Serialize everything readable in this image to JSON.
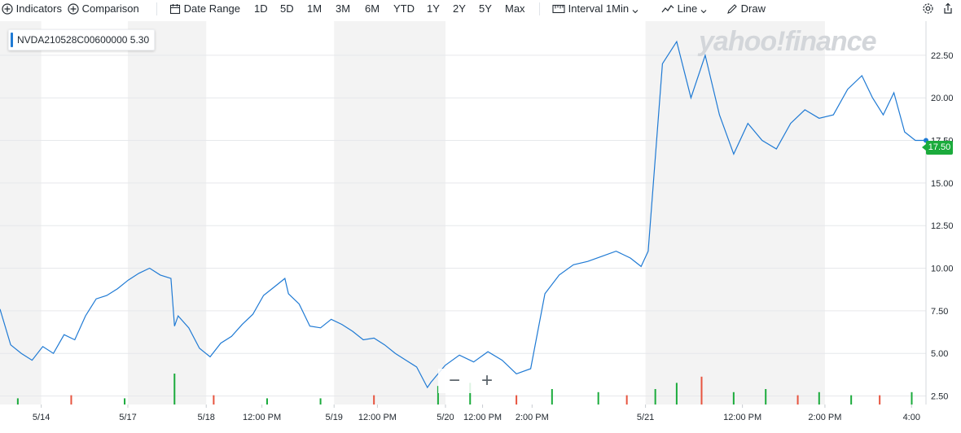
{
  "toolbar": {
    "indicators": "Indicators",
    "comparison": "Comparison",
    "date_range": "Date Range",
    "ranges": [
      "1D",
      "5D",
      "1M",
      "3M",
      "6M",
      "YTD",
      "1Y",
      "2Y",
      "5Y",
      "Max"
    ],
    "interval_label": "Interval",
    "interval_value": "1Min",
    "chart_type": "Line",
    "draw": "Draw"
  },
  "symbol": {
    "name": "NVDA210528C00600000",
    "value": "5.30"
  },
  "watermark": "yahoo!finance",
  "last_price": "17.50",
  "zoom": {
    "minus": "−",
    "plus": "+"
  },
  "colors": {
    "line": "#1f7ad4",
    "last_price_bg": "#1bab3c",
    "volume_up": "#1bab3c",
    "volume_down": "#e7543f"
  },
  "chart_data": {
    "type": "line",
    "y_ticks": [
      "2.50",
      "5.00",
      "7.50",
      "10.00",
      "12.50",
      "15.00",
      "17.50",
      "20.00",
      "22.50"
    ],
    "x_ticks": [
      "5/14",
      "5/17",
      "5/18",
      "12:00 PM",
      "5/19",
      "12:00 PM",
      "5/20",
      "12:00 PM",
      "2:00 PM",
      "5/21",
      "12:00 PM",
      "2:00 PM",
      "4:00"
    ],
    "ylim": [
      2.0,
      24.5
    ],
    "series": [
      {
        "x": [
          0,
          0.3,
          0.6,
          0.9,
          1.2,
          1.5,
          1.8,
          2.1,
          2.4,
          2.7,
          3.0,
          3.3,
          3.6,
          3.9,
          4.2,
          4.5,
          4.8,
          4.9,
          5.0,
          5.3,
          5.6,
          5.9,
          6.2,
          6.5,
          6.8,
          7.1,
          7.4,
          7.7,
          8.0,
          8.1,
          8.4,
          8.7,
          9.0,
          9.3,
          9.6,
          9.9,
          10.2,
          10.5,
          10.8,
          11.1,
          11.4,
          11.7,
          12.0,
          12.1,
          12.5,
          12.9,
          13.3,
          13.7,
          14.1,
          14.5,
          14.9,
          15.3,
          15.7,
          16.1,
          16.5,
          16.9,
          17.3,
          17.7,
          18.0,
          18.2,
          18.6,
          19.0,
          19.4,
          19.8,
          20.2,
          20.6,
          21.0,
          21.4,
          21.8,
          22.2,
          22.6,
          23.0,
          23.4,
          23.8,
          24.2,
          24.5,
          24.8,
          25.1,
          25.4,
          25.7,
          26.0
        ],
        "values": [
          7.6,
          5.5,
          5.0,
          4.6,
          5.4,
          5.0,
          6.1,
          5.8,
          7.2,
          8.2,
          8.4,
          8.8,
          9.3,
          9.7,
          10.0,
          9.6,
          9.4,
          6.6,
          7.2,
          6.5,
          5.3,
          4.8,
          5.6,
          6.0,
          6.7,
          7.3,
          8.4,
          8.9,
          9.4,
          8.5,
          7.9,
          6.6,
          6.5,
          7.0,
          6.7,
          6.3,
          5.8,
          5.9,
          5.5,
          5.0,
          4.6,
          4.2,
          3.0,
          3.3,
          4.3,
          4.9,
          4.5,
          5.1,
          4.6,
          3.8,
          4.1,
          8.5,
          9.6,
          10.2,
          10.4,
          10.7,
          11.0,
          10.6,
          10.1,
          11.0,
          22.0,
          23.3,
          20.0,
          22.5,
          19.0,
          16.7,
          18.5,
          17.5,
          17.0,
          18.5,
          19.3,
          18.8,
          19.0,
          20.5,
          21.3,
          20.0,
          19.0,
          20.3,
          18.0,
          17.5,
          17.5
        ]
      }
    ],
    "volume": {
      "x": [
        0.5,
        2.0,
        3.5,
        4.9,
        6.0,
        7.5,
        9.0,
        10.5,
        12.3,
        13.2,
        14.5,
        15.5,
        16.8,
        17.6,
        18.4,
        19.0,
        19.7,
        20.6,
        21.5,
        22.4,
        23.0,
        23.9,
        24.7,
        25.6
      ],
      "values": [
        0.2,
        0.3,
        0.2,
        1.0,
        0.3,
        0.2,
        0.2,
        0.3,
        0.6,
        0.7,
        0.3,
        0.5,
        0.4,
        0.3,
        0.5,
        0.7,
        0.9,
        0.4,
        0.5,
        0.3,
        0.4,
        0.3,
        0.3,
        0.4
      ]
    },
    "xlabel": "",
    "ylabel": "",
    "grid": true
  }
}
